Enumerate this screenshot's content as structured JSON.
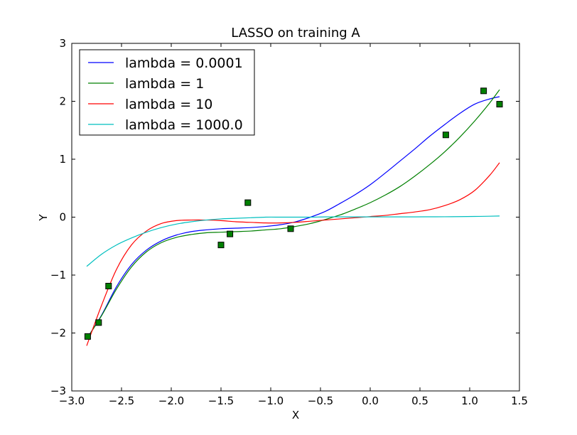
{
  "chart_data": {
    "type": "line",
    "title": "LASSO on training A",
    "xlabel": "X",
    "ylabel": "Y",
    "xlim": [
      -3.0,
      1.5
    ],
    "ylim": [
      -3,
      3
    ],
    "xticks": [
      "−3.0",
      "−2.5",
      "−2.0",
      "−1.5",
      "−1.0",
      "−0.5",
      "0.0",
      "0.5",
      "1.0",
      "1.5"
    ],
    "yticks": [
      "−3",
      "−2",
      "−1",
      "0",
      "1",
      "2",
      "3"
    ],
    "grid": false,
    "legend_position": "upper-left",
    "series": [
      {
        "name": "lambda = 0.0001",
        "color": "#0000ff",
        "x": [
          -2.85,
          -2.7,
          -2.55,
          -2.4,
          -2.25,
          -2.1,
          -1.95,
          -1.8,
          -1.65,
          -1.5,
          -1.35,
          -1.2,
          -1.05,
          -0.9,
          -0.75,
          -0.6,
          -0.45,
          -0.3,
          -0.15,
          0.0,
          0.15,
          0.3,
          0.45,
          0.6,
          0.75,
          0.9,
          1.05,
          1.2,
          1.3
        ],
        "y": [
          -2.1,
          -1.69,
          -1.2,
          -0.82,
          -0.57,
          -0.41,
          -0.31,
          -0.25,
          -0.22,
          -0.2,
          -0.19,
          -0.18,
          -0.16,
          -0.13,
          -0.08,
          0.0,
          0.1,
          0.24,
          0.39,
          0.56,
          0.76,
          0.97,
          1.18,
          1.4,
          1.6,
          1.79,
          1.95,
          2.04,
          2.08
        ]
      },
      {
        "name": "lambda = 1",
        "color": "#008000",
        "x": [
          -2.85,
          -2.7,
          -2.55,
          -2.4,
          -2.25,
          -2.1,
          -1.95,
          -1.8,
          -1.65,
          -1.5,
          -1.35,
          -1.2,
          -1.05,
          -0.9,
          -0.75,
          -0.6,
          -0.45,
          -0.3,
          -0.15,
          0.0,
          0.15,
          0.3,
          0.45,
          0.6,
          0.75,
          0.9,
          1.05,
          1.2,
          1.3
        ],
        "y": [
          -2.1,
          -1.7,
          -1.24,
          -0.86,
          -0.6,
          -0.44,
          -0.35,
          -0.3,
          -0.27,
          -0.26,
          -0.25,
          -0.24,
          -0.22,
          -0.2,
          -0.16,
          -0.11,
          -0.04,
          0.04,
          0.14,
          0.25,
          0.38,
          0.53,
          0.71,
          0.91,
          1.13,
          1.38,
          1.66,
          1.97,
          2.2
        ]
      },
      {
        "name": "lambda = 10",
        "color": "#ff0000",
        "x": [
          -2.85,
          -2.7,
          -2.55,
          -2.4,
          -2.25,
          -2.1,
          -1.95,
          -1.8,
          -1.65,
          -1.5,
          -1.35,
          -1.2,
          -1.05,
          -0.9,
          -0.75,
          -0.6,
          -0.45,
          -0.3,
          -0.15,
          0.0,
          0.15,
          0.3,
          0.45,
          0.6,
          0.75,
          0.9,
          1.05,
          1.2,
          1.3
        ],
        "y": [
          -2.22,
          -1.52,
          -0.9,
          -0.48,
          -0.24,
          -0.11,
          -0.06,
          -0.05,
          -0.05,
          -0.06,
          -0.08,
          -0.09,
          -0.1,
          -0.1,
          -0.09,
          -0.07,
          -0.05,
          -0.03,
          -0.01,
          0.01,
          0.03,
          0.06,
          0.09,
          0.13,
          0.2,
          0.3,
          0.46,
          0.72,
          0.94
        ]
      },
      {
        "name": "lambda = 1000.0",
        "color": "#00bfbf",
        "x": [
          -2.85,
          -2.7,
          -2.55,
          -2.4,
          -2.25,
          -2.1,
          -1.95,
          -1.8,
          -1.65,
          -1.5,
          -1.35,
          -1.2,
          -1.05,
          -0.9,
          -0.75,
          -0.6,
          -0.45,
          -0.3,
          -0.15,
          0.0,
          0.15,
          0.3,
          0.45,
          0.6,
          0.75,
          0.9,
          1.05,
          1.2,
          1.3
        ],
        "y": [
          -0.85,
          -0.64,
          -0.48,
          -0.36,
          -0.26,
          -0.18,
          -0.12,
          -0.08,
          -0.05,
          -0.03,
          -0.02,
          -0.01,
          0.0,
          0.0,
          0.0,
          0.0,
          0.005,
          0.005,
          0.005,
          0.005,
          0.005,
          0.005,
          0.005,
          0.006,
          0.007,
          0.009,
          0.012,
          0.016,
          0.02
        ]
      }
    ],
    "scatter": {
      "color": "#008000",
      "x": [
        -2.84,
        -2.73,
        -2.63,
        -1.5,
        -1.41,
        -1.23,
        -0.8,
        0.76,
        1.14,
        1.3
      ],
      "y": [
        -2.06,
        -1.82,
        -1.19,
        -0.48,
        -0.29,
        0.25,
        -0.2,
        1.42,
        2.18,
        1.95
      ]
    }
  }
}
